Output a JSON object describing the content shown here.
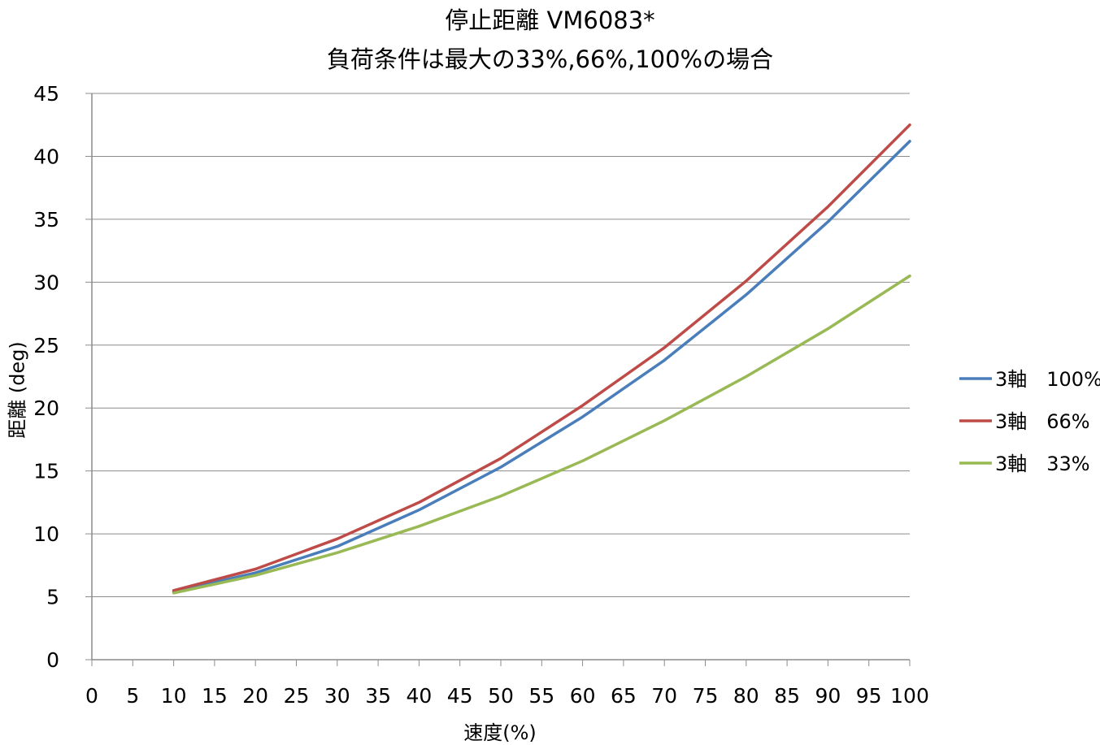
{
  "chart_data": {
    "type": "line",
    "title": [
      "停止距離 VM6083*",
      "負荷条件は最大の33%,66%,100%の場合"
    ],
    "xlabel": "速度(%)",
    "ylabel": "距離 (deg)",
    "xlim": [
      0,
      100
    ],
    "ylim": [
      0,
      45
    ],
    "x_ticks": [
      0,
      5,
      10,
      15,
      20,
      25,
      30,
      35,
      40,
      45,
      50,
      55,
      60,
      65,
      70,
      75,
      80,
      85,
      90,
      95,
      100
    ],
    "y_ticks": [
      0,
      5,
      10,
      15,
      20,
      25,
      30,
      35,
      40,
      45
    ],
    "grid": {
      "horizontal": true,
      "vertical": false
    },
    "legend_position": "right",
    "x": [
      10,
      20,
      30,
      40,
      50,
      60,
      70,
      80,
      90,
      100
    ],
    "series": [
      {
        "name": "3軸　100%",
        "color": "#4a7ebb",
        "values": [
          5.4,
          6.9,
          9.0,
          11.9,
          15.3,
          19.3,
          23.8,
          29.0,
          34.8,
          41.2
        ]
      },
      {
        "name": "3軸　66%",
        "color": "#be4b48",
        "values": [
          5.5,
          7.2,
          9.6,
          12.5,
          16.0,
          20.2,
          24.8,
          30.1,
          36.0,
          42.5
        ]
      },
      {
        "name": "3軸　33%",
        "color": "#98b954",
        "values": [
          5.3,
          6.7,
          8.5,
          10.6,
          13.0,
          15.8,
          19.0,
          22.5,
          26.3,
          30.5
        ]
      }
    ]
  }
}
